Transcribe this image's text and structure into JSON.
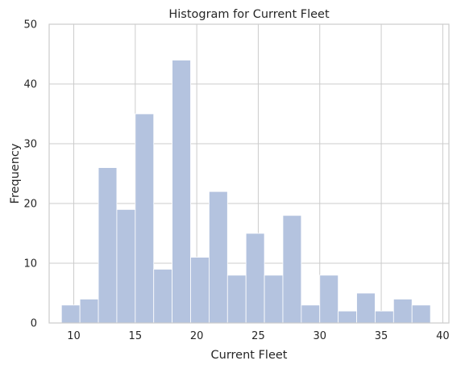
{
  "chart_data": {
    "type": "bar",
    "subtype": "histogram",
    "title": "Histogram for Current Fleet",
    "xlabel": "Current Fleet",
    "ylabel": "Frequency",
    "xlim": [
      8.0,
      40.5
    ],
    "ylim": [
      0,
      50
    ],
    "xticks": [
      10,
      15,
      20,
      25,
      30,
      35,
      40
    ],
    "yticks": [
      0,
      10,
      20,
      30,
      40,
      50
    ],
    "grid": true,
    "bar_color": "#b4c3df",
    "bins": [
      {
        "start": 9.0,
        "end": 10.5,
        "value": 3
      },
      {
        "start": 10.5,
        "end": 12.0,
        "value": 4
      },
      {
        "start": 12.0,
        "end": 13.5,
        "value": 26
      },
      {
        "start": 13.5,
        "end": 15.0,
        "value": 19
      },
      {
        "start": 15.0,
        "end": 16.5,
        "value": 35
      },
      {
        "start": 16.5,
        "end": 18.0,
        "value": 9
      },
      {
        "start": 18.0,
        "end": 19.5,
        "value": 44
      },
      {
        "start": 19.5,
        "end": 21.0,
        "value": 11
      },
      {
        "start": 21.0,
        "end": 22.5,
        "value": 22
      },
      {
        "start": 22.5,
        "end": 24.0,
        "value": 8
      },
      {
        "start": 24.0,
        "end": 25.5,
        "value": 15
      },
      {
        "start": 25.5,
        "end": 27.0,
        "value": 8
      },
      {
        "start": 27.0,
        "end": 28.5,
        "value": 18
      },
      {
        "start": 28.5,
        "end": 30.0,
        "value": 3
      },
      {
        "start": 30.0,
        "end": 31.5,
        "value": 8
      },
      {
        "start": 31.5,
        "end": 33.0,
        "value": 2
      },
      {
        "start": 33.0,
        "end": 34.5,
        "value": 5
      },
      {
        "start": 34.5,
        "end": 36.0,
        "value": 2
      },
      {
        "start": 36.0,
        "end": 37.5,
        "value": 4
      },
      {
        "start": 37.5,
        "end": 39.0,
        "value": 3
      }
    ]
  }
}
